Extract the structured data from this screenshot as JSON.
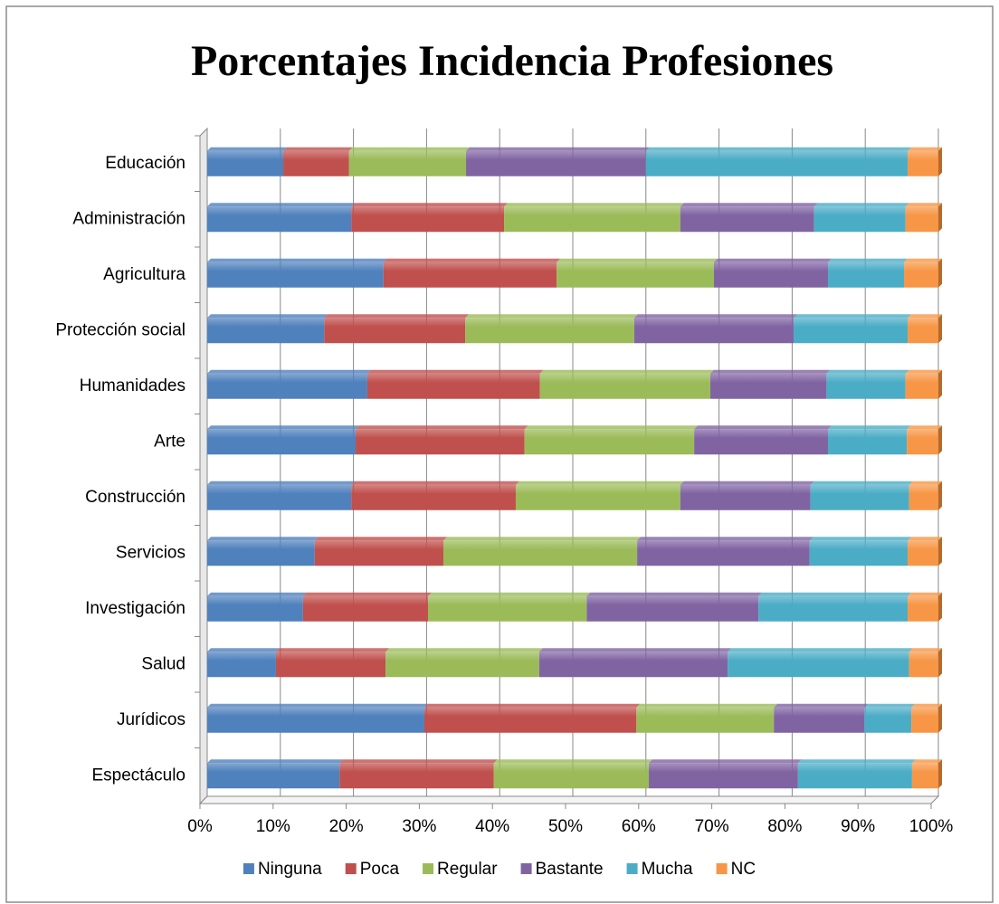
{
  "chart_data": {
    "type": "stacked_barh",
    "title": "Porcentajes Incidencia Profesiones",
    "categories": [
      "Educación",
      "Administración",
      "Agricultura",
      "Protección social",
      "Humanidades",
      "Arte",
      "Construcción",
      "Servicios",
      "Investigación",
      "Salud",
      "Jurídicos",
      "Espectáculo"
    ],
    "series": [
      {
        "name": "Ninguna",
        "color": "#4f81bd",
        "values": [
          10.4,
          19.7,
          24.1,
          16.0,
          21.9,
          20.3,
          19.7,
          14.7,
          13.1,
          9.4,
          29.7,
          18.1
        ]
      },
      {
        "name": "Poca",
        "color": "#c0504d",
        "values": [
          9.0,
          20.9,
          23.7,
          19.3,
          23.6,
          23.1,
          22.5,
          17.6,
          17.1,
          15.0,
          29.0,
          21.1
        ]
      },
      {
        "name": "Regular",
        "color": "#9bbb59",
        "values": [
          16.0,
          24.1,
          21.5,
          23.1,
          23.3,
          23.2,
          22.5,
          26.5,
          21.7,
          21.0,
          18.8,
          21.2
        ]
      },
      {
        "name": "Bastante",
        "color": "#8064a2",
        "values": [
          24.6,
          18.3,
          15.6,
          21.8,
          15.9,
          18.3,
          17.8,
          23.6,
          23.5,
          25.8,
          12.4,
          20.4
        ]
      },
      {
        "name": "Mucha",
        "color": "#4bacc6",
        "values": [
          35.8,
          12.5,
          10.4,
          15.6,
          10.8,
          10.8,
          13.5,
          13.4,
          20.4,
          24.8,
          6.4,
          15.6
        ]
      },
      {
        "name": "NC",
        "color": "#f79646",
        "values": [
          4.2,
          4.5,
          4.7,
          4.2,
          4.5,
          4.3,
          4.0,
          4.2,
          4.2,
          4.0,
          3.7,
          3.6
        ]
      }
    ],
    "xlim": [
      0,
      100
    ],
    "xticks": [
      {
        "value": 0,
        "label": "0%"
      },
      {
        "value": 10,
        "label": "10%"
      },
      {
        "value": 20,
        "label": "20%"
      },
      {
        "value": 30,
        "label": "30%"
      },
      {
        "value": 40,
        "label": "40%"
      },
      {
        "value": 50,
        "label": "50%"
      },
      {
        "value": 60,
        "label": "60%"
      },
      {
        "value": 70,
        "label": "70%"
      },
      {
        "value": 80,
        "label": "80%"
      },
      {
        "value": 90,
        "label": "90%"
      },
      {
        "value": 100,
        "label": "100%"
      }
    ],
    "grid": true,
    "legend": "bottom"
  }
}
